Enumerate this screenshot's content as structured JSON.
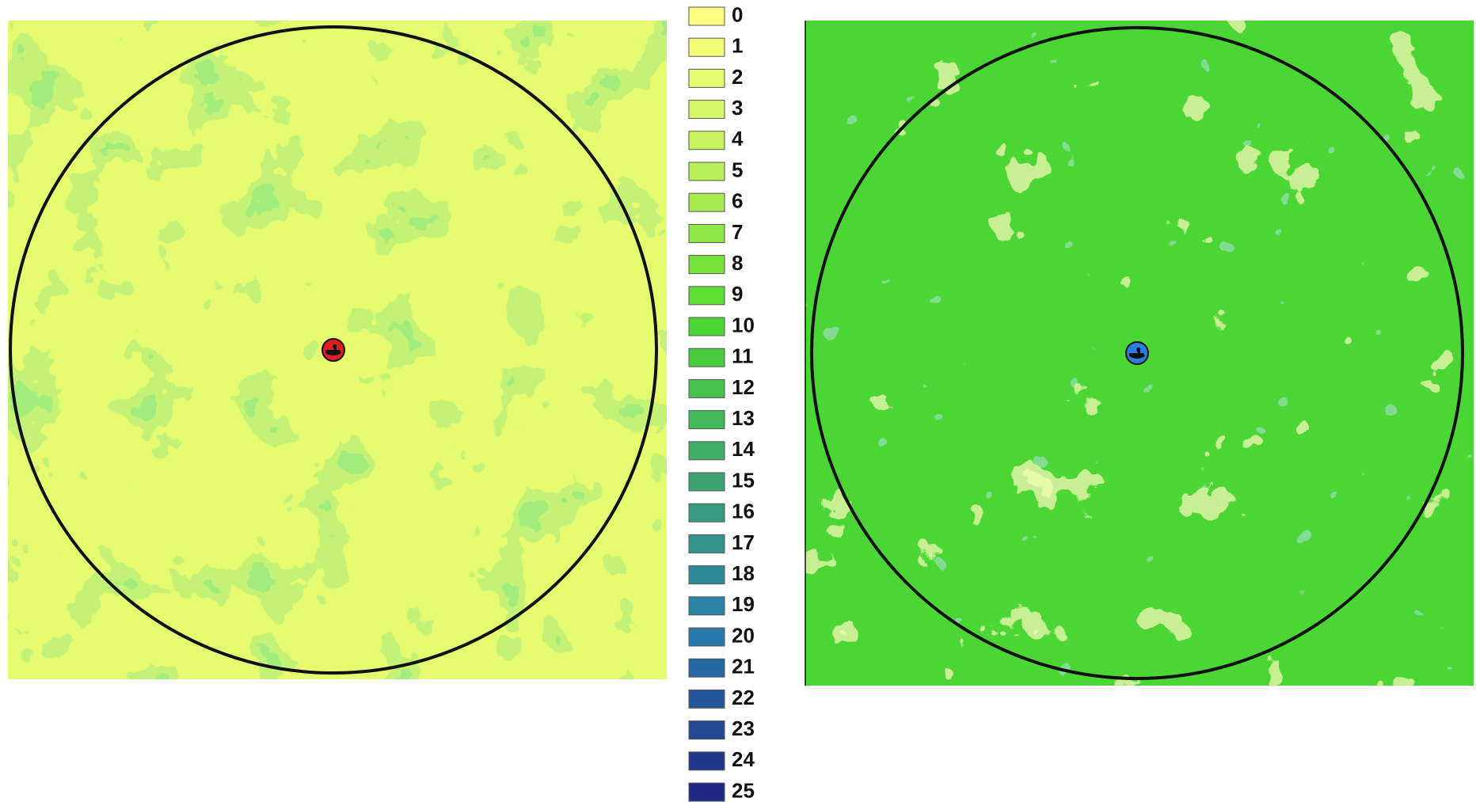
{
  "legend": {
    "labels": [
      "0",
      "1",
      "2",
      "3",
      "4",
      "5",
      "6",
      "7",
      "8",
      "9",
      "10",
      "11",
      "12",
      "13",
      "14",
      "15",
      "16",
      "17",
      "18",
      "19",
      "20",
      "21",
      "22",
      "23",
      "24",
      "25"
    ],
    "colors": [
      "#ffff80",
      "#f2fc78",
      "#e6fa70",
      "#d8f768",
      "#c9f460",
      "#b8f058",
      "#a4ec4e",
      "#8ee845",
      "#76e33c",
      "#5cdd33",
      "#4cd635",
      "#48cc40",
      "#46c24c",
      "#43b858",
      "#3fae66",
      "#3ba472",
      "#369b80",
      "#32928c",
      "#2e8a98",
      "#2a82a4",
      "#2878ac",
      "#2668a4",
      "#24589c",
      "#224894",
      "#20388c",
      "#1e2a86"
    ]
  }
}
